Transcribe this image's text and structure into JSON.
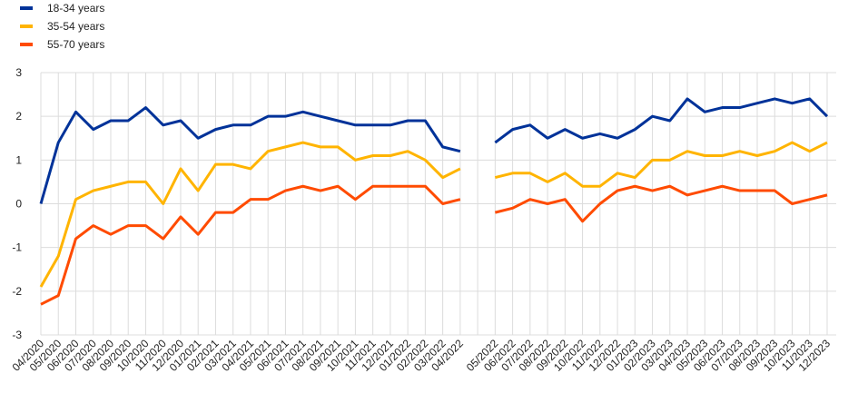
{
  "chart_data": {
    "type": "line",
    "categories": [
      "04/2020",
      "05/2020",
      "06/2020",
      "07/2020",
      "08/2020",
      "09/2020",
      "10/2020",
      "11/2020",
      "12/2020",
      "01/2021",
      "02/2021",
      "03/2021",
      "04/2021",
      "05/2021",
      "06/2021",
      "07/2021",
      "08/2021",
      "09/2021",
      "10/2021",
      "11/2021",
      "12/2021",
      "01/2022",
      "02/2022",
      "03/2022",
      "04/2022",
      null,
      "05/2022",
      "06/2022",
      "07/2022",
      "08/2022",
      "09/2022",
      "10/2022",
      "11/2022",
      "12/2022",
      "01/2023",
      "02/2023",
      "03/2023",
      "04/2023",
      "05/2023",
      "06/2023",
      "07/2023",
      "08/2023",
      "09/2023",
      "10/2023",
      "11/2023",
      "12/2023"
    ],
    "series": [
      {
        "name": "18-34 years",
        "color": "#003299",
        "values": [
          0,
          1.4,
          2.1,
          1.7,
          1.9,
          1.9,
          2.2,
          1.8,
          1.9,
          1.5,
          1.7,
          1.8,
          1.8,
          2.0,
          2.0,
          2.1,
          2.0,
          1.9,
          1.8,
          1.8,
          1.8,
          1.9,
          1.9,
          1.3,
          1.2,
          null,
          1.4,
          1.7,
          1.8,
          1.5,
          1.7,
          1.5,
          1.6,
          1.5,
          1.7,
          2.0,
          1.9,
          2.4,
          2.1,
          2.2,
          2.2,
          2.3,
          2.4,
          2.3,
          2.4,
          2.0
        ]
      },
      {
        "name": "35-54 years",
        "color": "#ffb400",
        "values": [
          -1.9,
          -1.2,
          0.1,
          0.3,
          0.4,
          0.5,
          0.5,
          0.0,
          0.8,
          0.3,
          0.9,
          0.9,
          0.8,
          1.2,
          1.3,
          1.4,
          1.3,
          1.3,
          1.0,
          1.1,
          1.1,
          1.2,
          1.0,
          0.6,
          0.8,
          null,
          0.6,
          0.7,
          0.7,
          0.5,
          0.7,
          0.4,
          0.4,
          0.7,
          0.6,
          1.0,
          1.0,
          1.2,
          1.1,
          1.1,
          1.2,
          1.1,
          1.2,
          1.4,
          1.2,
          1.4
        ]
      },
      {
        "name": "55-70 years",
        "color": "#ff4b00",
        "values": [
          -2.3,
          -2.1,
          -0.8,
          -0.5,
          -0.7,
          -0.5,
          -0.5,
          -0.8,
          -0.3,
          -0.7,
          -0.2,
          -0.2,
          0.1,
          0.1,
          0.3,
          0.4,
          0.3,
          0.4,
          0.1,
          0.4,
          0.4,
          0.4,
          0.4,
          0.0,
          0.1,
          null,
          -0.2,
          -0.1,
          0.1,
          0.0,
          0.1,
          -0.4,
          0.0,
          0.3,
          0.4,
          0.3,
          0.4,
          0.2,
          0.3,
          0.4,
          0.3,
          0.3,
          0.3,
          0.0,
          0.1,
          0.2
        ]
      }
    ],
    "ylim": [
      -3,
      3
    ],
    "yticks": [
      -3,
      -2,
      -1,
      0,
      1,
      2,
      3
    ],
    "grid": true
  }
}
